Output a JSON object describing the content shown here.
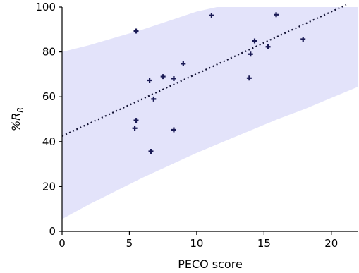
{
  "chart_data": {
    "type": "scatter",
    "xlabel": "PECO score",
    "ylabel_main": "%R",
    "ylabel_sub": "R",
    "xlim": [
      0,
      22
    ],
    "ylim": [
      0,
      100
    ],
    "xticks": [
      0,
      5,
      10,
      15,
      20
    ],
    "yticks": [
      0,
      20,
      40,
      60,
      80,
      100
    ],
    "grid": false,
    "colors": {
      "points": "#1a1a55",
      "trend": "#111133",
      "band": "#e3e3fa",
      "axes": "#000000"
    },
    "points": [
      {
        "x": 5.5,
        "y": 89.3
      },
      {
        "x": 5.5,
        "y": 49.5
      },
      {
        "x": 5.4,
        "y": 46.0
      },
      {
        "x": 6.5,
        "y": 67.3
      },
      {
        "x": 6.6,
        "y": 35.7
      },
      {
        "x": 6.8,
        "y": 59.0
      },
      {
        "x": 7.5,
        "y": 69.0
      },
      {
        "x": 8.3,
        "y": 68.1
      },
      {
        "x": 8.3,
        "y": 45.3
      },
      {
        "x": 9.0,
        "y": 74.7
      },
      {
        "x": 11.1,
        "y": 96.3
      },
      {
        "x": 13.9,
        "y": 68.3
      },
      {
        "x": 14.0,
        "y": 79.0
      },
      {
        "x": 14.3,
        "y": 84.9
      },
      {
        "x": 15.3,
        "y": 82.3
      },
      {
        "x": 15.9,
        "y": 96.6
      },
      {
        "x": 17.9,
        "y": 85.7
      }
    ],
    "trend": {
      "x": [
        0,
        21.1
      ],
      "y": [
        42.5,
        101
      ]
    },
    "band_upper": {
      "x": [
        0,
        2,
        4,
        6,
        8,
        10,
        11.5
      ],
      "y": [
        80,
        83,
        86.5,
        90,
        94,
        98,
        100
      ]
    },
    "band_lower": {
      "x": [
        0,
        2,
        4,
        6,
        8,
        10,
        12,
        14,
        16,
        18,
        20,
        22
      ],
      "y": [
        5.5,
        12,
        18,
        24,
        29.5,
        35,
        40,
        45,
        50,
        54.5,
        59.5,
        64.5
      ]
    }
  }
}
